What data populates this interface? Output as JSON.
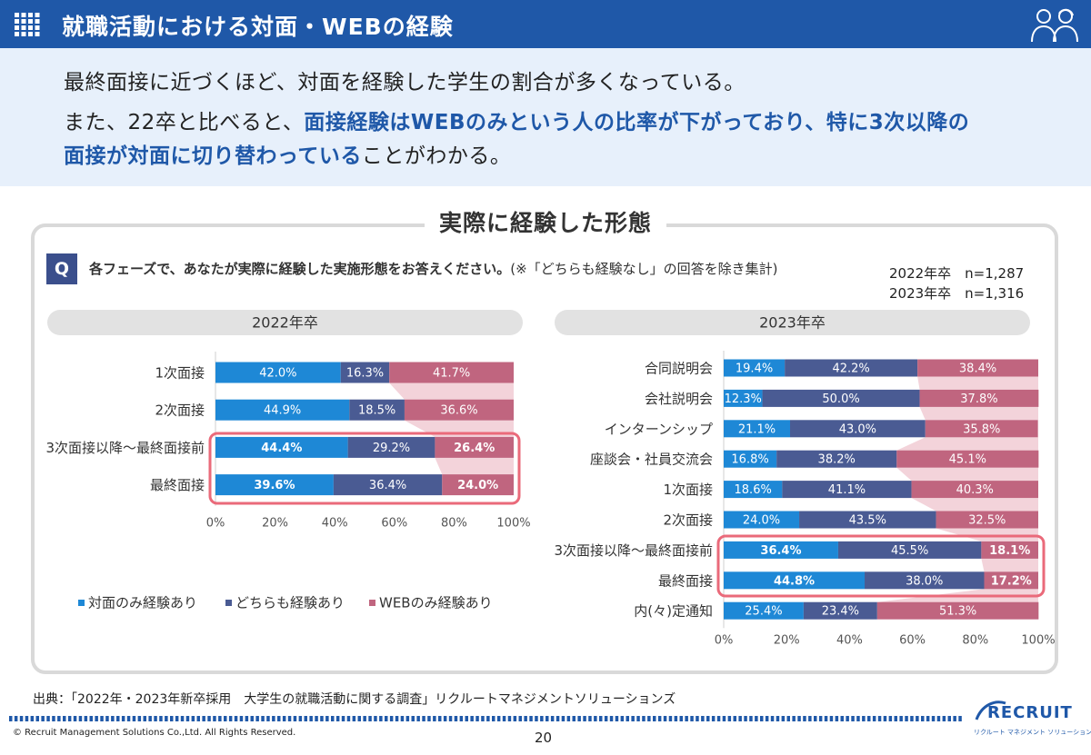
{
  "header": {
    "title": "就職活動における対面・WEBの経験"
  },
  "summary": {
    "line1": "最終面接に近づくほど、対面を経験した学生の割合が多くなっている。",
    "line2_prefix": "また、22卒と比べると、",
    "line2_bold": "面接経験はWEBのみという人の比率が下がっており、特に3次以降の",
    "line3_bold": "面接が対面に切り替わっている",
    "line3_suffix": "ことがわかる。"
  },
  "panel": {
    "title": "実際に経験した形態",
    "q_badge": "Q",
    "question_bold": "各フェーズで、あなたが実際に経験した実施形態をお答えください。",
    "question_note": "(※「どちらも経験なし」の回答を除き集計)",
    "n_2022": "2022年卒　n=1,287",
    "n_2023": "2023年卒　n=1,316"
  },
  "chart_data": [
    {
      "type": "bar",
      "title": "2022年卒",
      "orientation": "horizontal-stacked-100",
      "categories": [
        "1次面接",
        "2次面接",
        "3次面接以降～最終面接前",
        "最終面接"
      ],
      "series": [
        {
          "name": "対面のみ経験あり",
          "values": [
            42.0,
            44.9,
            44.4,
            39.6
          ]
        },
        {
          "name": "どちらも経験あり",
          "values": [
            16.3,
            18.5,
            29.2,
            36.4
          ]
        },
        {
          "name": "WEBのみ経験あり",
          "values": [
            41.7,
            36.6,
            26.4,
            24.0
          ]
        }
      ],
      "value_labels": [
        [
          "42.0%",
          "16.3%",
          "41.7%"
        ],
        [
          "44.9%",
          "18.5%",
          "36.6%"
        ],
        [
          "44.4%",
          "29.2%",
          "26.4%"
        ],
        [
          "39.6%",
          "36.4%",
          "24.0%"
        ]
      ],
      "highlighted": [
        2,
        3
      ],
      "xticks": [
        "0%",
        "20%",
        "40%",
        "60%",
        "80%",
        "100%"
      ],
      "xlim": [
        0,
        100
      ],
      "legend": "bottom"
    },
    {
      "type": "bar",
      "title": "2023年卒",
      "orientation": "horizontal-stacked-100",
      "categories": [
        "合同説明会",
        "会社説明会",
        "インターンシップ",
        "座談会・社員交流会",
        "1次面接",
        "2次面接",
        "3次面接以降～最終面接前",
        "最終面接",
        "内(々)定通知"
      ],
      "series": [
        {
          "name": "対面のみ経験あり",
          "values": [
            19.4,
            12.3,
            21.1,
            16.8,
            18.6,
            24.0,
            36.4,
            44.8,
            25.4
          ]
        },
        {
          "name": "どちらも経験あり",
          "values": [
            42.2,
            50.0,
            43.0,
            38.2,
            41.1,
            43.5,
            45.5,
            38.0,
            23.4
          ]
        },
        {
          "name": "WEBのみ経験あり",
          "values": [
            38.4,
            37.8,
            35.8,
            45.1,
            40.3,
            32.5,
            18.1,
            17.2,
            51.3
          ]
        }
      ],
      "value_labels": [
        [
          "19.4%",
          "42.2%",
          "38.4%"
        ],
        [
          "12.3%",
          "50.0%",
          "37.8%"
        ],
        [
          "21.1%",
          "43.0%",
          "35.8%"
        ],
        [
          "16.8%",
          "38.2%",
          "45.1%"
        ],
        [
          "18.6%",
          "41.1%",
          "40.3%"
        ],
        [
          "24.0%",
          "43.5%",
          "32.5%"
        ],
        [
          "36.4%",
          "45.5%",
          "18.1%"
        ],
        [
          "44.8%",
          "38.0%",
          "17.2%"
        ],
        [
          "25.4%",
          "23.4%",
          "51.3%"
        ]
      ],
      "highlighted": [
        6,
        7
      ],
      "xticks": [
        "0%",
        "20%",
        "40%",
        "60%",
        "80%",
        "100%"
      ],
      "xlim": [
        0,
        100
      ]
    }
  ],
  "colors": {
    "face_to_face": "#1e88d6",
    "both": "#4a5b93",
    "web_only": "#c0657f",
    "highlight_box": "#ea6a7a",
    "connector": "#f3d3da",
    "header_bg": "#1f58a8",
    "section_pill": "#e2e2e2"
  },
  "footer": {
    "source": "出典：「2022年・2023年新卒採用　大学生の就職活動に関する調査」リクルートマネジメントソリューションズ",
    "copyright": "© Recruit Management Solutions Co.,Ltd. All Rights Reserved.",
    "page": "20",
    "logo_text": "RECRUIT",
    "logo_sub": "リクルート マネジメント ソリューションズ"
  },
  "icons": [
    "grid-icon",
    "people-icon"
  ]
}
